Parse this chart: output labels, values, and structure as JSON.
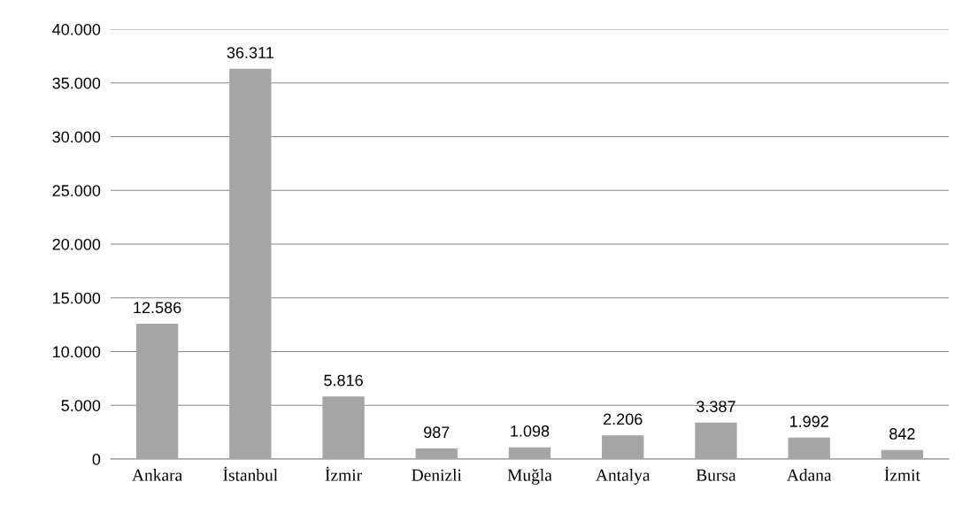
{
  "chart_data": {
    "type": "bar",
    "categories": [
      "Ankara",
      "İstanbul",
      "İzmir",
      "Denizli",
      "Muğla",
      "Antalya",
      "Bursa",
      "Adana",
      "İzmit"
    ],
    "values": [
      12586,
      36311,
      5816,
      987,
      1098,
      2206,
      3387,
      1992,
      842
    ],
    "value_labels": [
      "12.586",
      "36.311",
      "5.816",
      "987",
      "1.098",
      "2.206",
      "3.387",
      "1.992",
      "842"
    ],
    "color": "#a5a5a5",
    "ylim": [
      0,
      40000
    ],
    "yticks": [
      {
        "value": 0,
        "label": "0"
      },
      {
        "value": 5000,
        "label": "5.000"
      },
      {
        "value": 10000,
        "label": "10.000"
      },
      {
        "value": 15000,
        "label": "15.000"
      },
      {
        "value": 20000,
        "label": "20.000"
      },
      {
        "value": 25000,
        "label": "25.000"
      },
      {
        "value": 30000,
        "label": "30.000"
      },
      {
        "value": 35000,
        "label": "35.000"
      },
      {
        "value": 40000,
        "label": "40.000"
      }
    ],
    "grid": "y",
    "legend": false
  }
}
